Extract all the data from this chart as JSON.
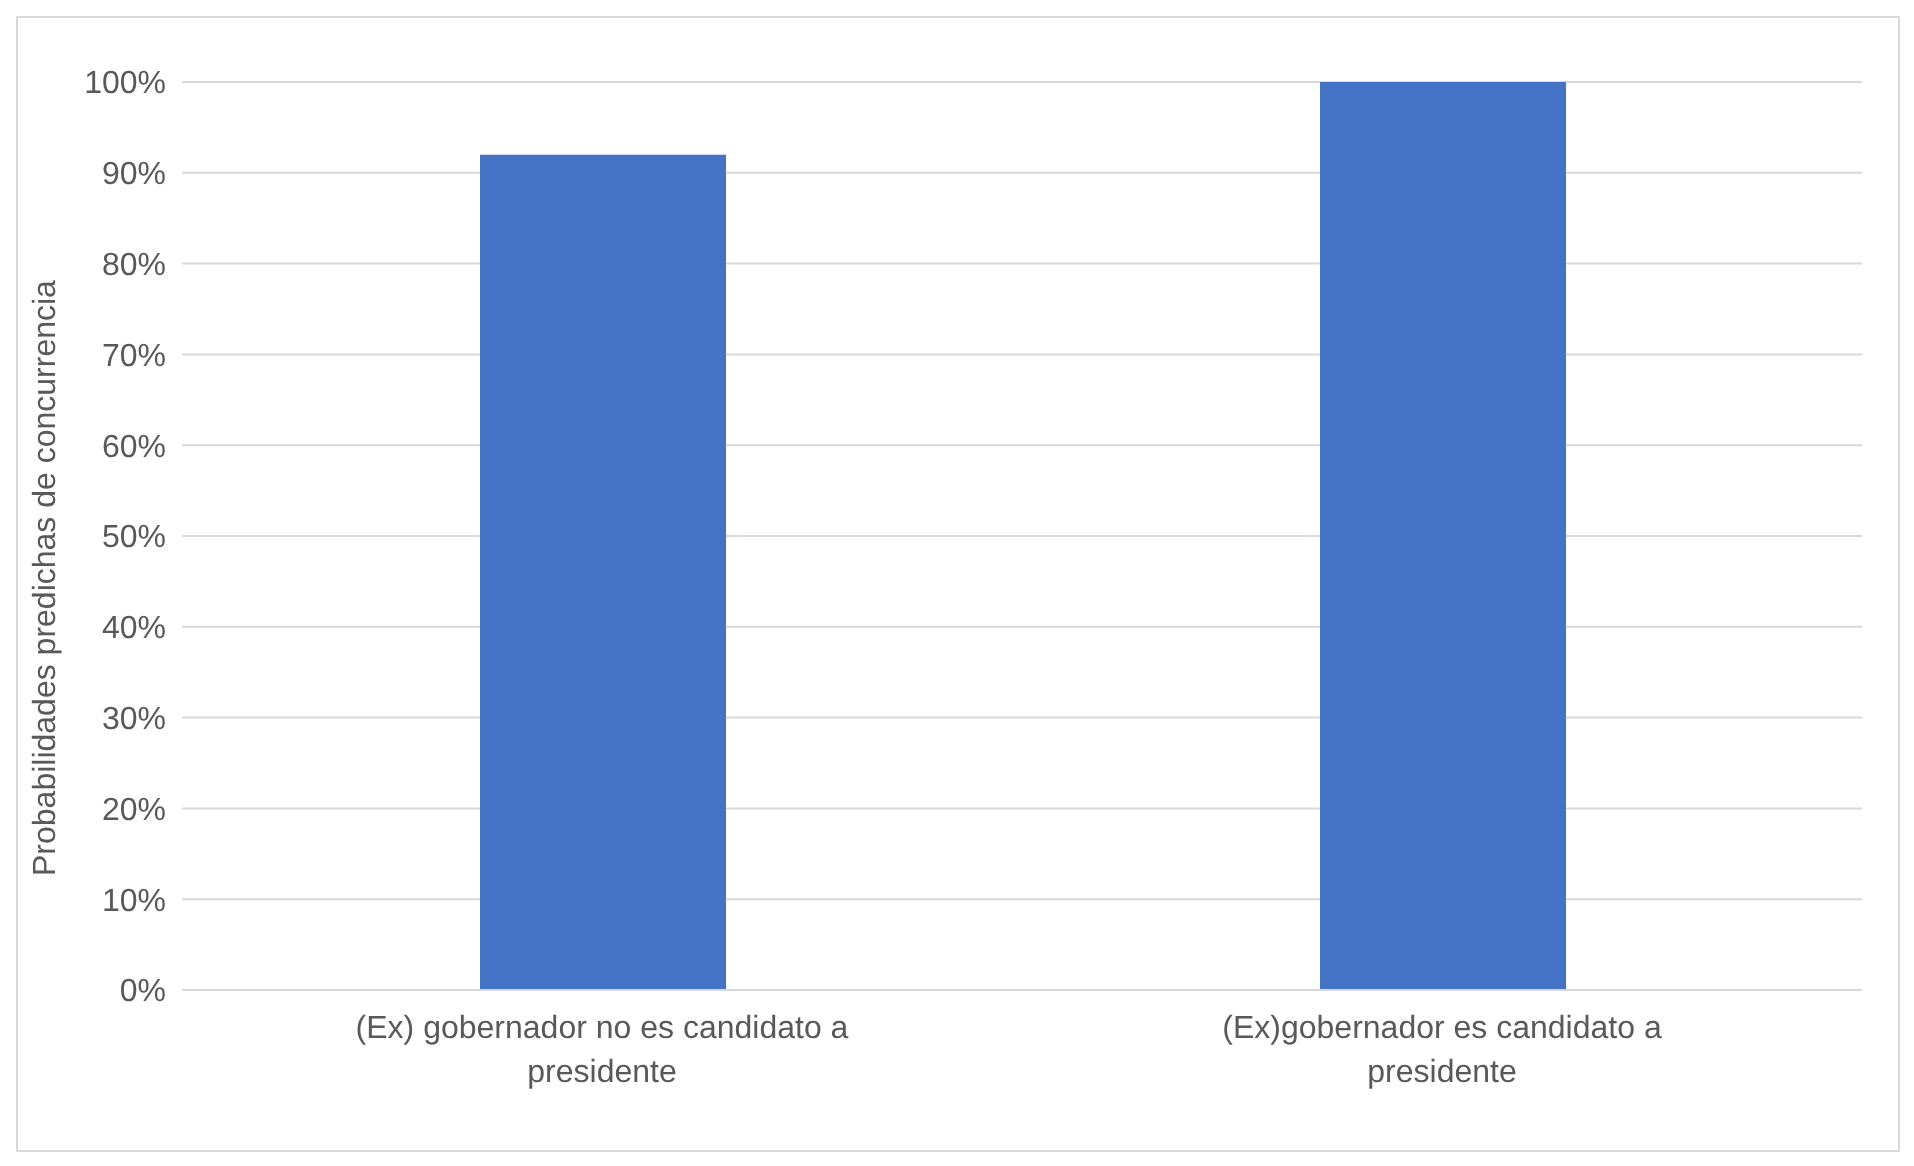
{
  "chart_data": {
    "type": "bar",
    "categories": [
      "(Ex) gobernador no es candidato a presidente",
      "(Ex)gobernador es candidato a presidente"
    ],
    "values": [
      92,
      100
    ],
    "color": "#4472c4",
    "ylabel": "Probabilidades predichas de concurrencia",
    "ylim": [
      0,
      100
    ],
    "yticks": [
      {
        "value": 0,
        "label": "0%"
      },
      {
        "value": 10,
        "label": "10%"
      },
      {
        "value": 20,
        "label": "20%"
      },
      {
        "value": 30,
        "label": "30%"
      },
      {
        "value": 40,
        "label": "40%"
      },
      {
        "value": 50,
        "label": "50%"
      },
      {
        "value": 60,
        "label": "60%"
      },
      {
        "value": 70,
        "label": "70%"
      },
      {
        "value": 80,
        "label": "80%"
      },
      {
        "value": 90,
        "label": "90%"
      },
      {
        "value": 100,
        "label": "100%"
      }
    ],
    "grid": "y"
  }
}
